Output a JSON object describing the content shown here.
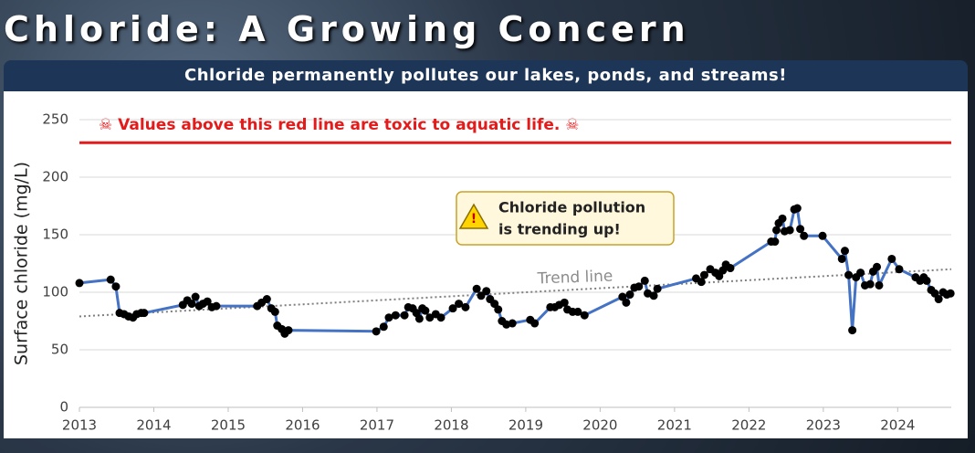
{
  "title": "Chloride: A Growing Concern",
  "subtitle": "Chloride permanently pollutes our lakes, ponds, and streams!",
  "chart_data": {
    "type": "line",
    "y_label": "Surface chloride (mg/L)",
    "xlim": [
      2013,
      2024.72
    ],
    "xticks": [
      2013,
      2014,
      2015,
      2016,
      2017,
      2018,
      2019,
      2020,
      2021,
      2022,
      2023,
      2024
    ],
    "ylim": [
      0,
      250
    ],
    "yticks": [
      0,
      50,
      100,
      150,
      200,
      250
    ],
    "grid": true,
    "color": "#4472c4",
    "marker_color": "#000000",
    "threshold": {
      "value": 230,
      "color": "#e31b1b",
      "label": "☠ Values above this red line are toxic to aquatic life. ☠"
    },
    "trend": {
      "label": "Trend line",
      "start": 79,
      "end": 120
    },
    "annotation": [
      "Chloride pollution",
      "is trending up!"
    ],
    "x": [
      2013.0,
      2013.42,
      2013.49,
      2013.54,
      2013.6,
      2013.66,
      2013.72,
      2013.77,
      2013.83,
      2013.87,
      2014.39,
      2014.45,
      2014.51,
      2014.56,
      2014.61,
      2014.66,
      2014.72,
      2014.78,
      2014.84,
      2015.39,
      2015.45,
      2015.52,
      2015.58,
      2015.63,
      2015.66,
      2015.72,
      2015.76,
      2015.81,
      2016.99,
      2017.09,
      2017.16,
      2017.25,
      2017.37,
      2017.42,
      2017.48,
      2017.53,
      2017.57,
      2017.61,
      2017.65,
      2017.71,
      2017.79,
      2017.86,
      2018.02,
      2018.1,
      2018.19,
      2018.34,
      2018.4,
      2018.47,
      2018.52,
      2018.58,
      2018.63,
      2018.68,
      2018.74,
      2018.82,
      2019.06,
      2019.12,
      2019.33,
      2019.39,
      2019.45,
      2019.52,
      2019.56,
      2019.63,
      2019.7,
      2019.79,
      2020.3,
      2020.35,
      2020.4,
      2020.46,
      2020.52,
      2020.6,
      2020.64,
      2020.72,
      2020.77,
      2021.29,
      2021.36,
      2021.4,
      2021.48,
      2021.55,
      2021.6,
      2021.65,
      2021.69,
      2021.75,
      2022.3,
      2022.35,
      2022.37,
      2022.4,
      2022.45,
      2022.48,
      2022.55,
      2022.61,
      2022.65,
      2022.69,
      2022.74,
      2022.99,
      2023.25,
      2023.29,
      2023.34,
      2023.39,
      2023.44,
      2023.5,
      2023.56,
      2023.63,
      2023.67,
      2023.72,
      2023.75,
      2023.92,
      2024.02,
      2024.24,
      2024.3,
      2024.35,
      2024.39,
      2024.45,
      2024.5,
      2024.55,
      2024.61,
      2024.66,
      2024.71
    ],
    "values": [
      108,
      111,
      105,
      82,
      81,
      79,
      78,
      81,
      82,
      82,
      89,
      93,
      90,
      96,
      88,
      90,
      92,
      87,
      88,
      88,
      91,
      94,
      86,
      83,
      71,
      68,
      64,
      67,
      66,
      70,
      78,
      80,
      80,
      87,
      86,
      82,
      77,
      86,
      84,
      78,
      81,
      78,
      86,
      90,
      87,
      103,
      97,
      101,
      94,
      90,
      85,
      75,
      72,
      73,
      76,
      73,
      87,
      87,
      89,
      91,
      85,
      83,
      83,
      80,
      96,
      91,
      98,
      104,
      105,
      110,
      99,
      97,
      103,
      112,
      109,
      115,
      120,
      117,
      114,
      119,
      124,
      121,
      144,
      144,
      154,
      160,
      164,
      153,
      154,
      172,
      173,
      155,
      149,
      149,
      129,
      136,
      115,
      67,
      113,
      117,
      106,
      107,
      118,
      122,
      106,
      129,
      120,
      113,
      110,
      113,
      110,
      102,
      99,
      94,
      100,
      98,
      99
    ]
  }
}
